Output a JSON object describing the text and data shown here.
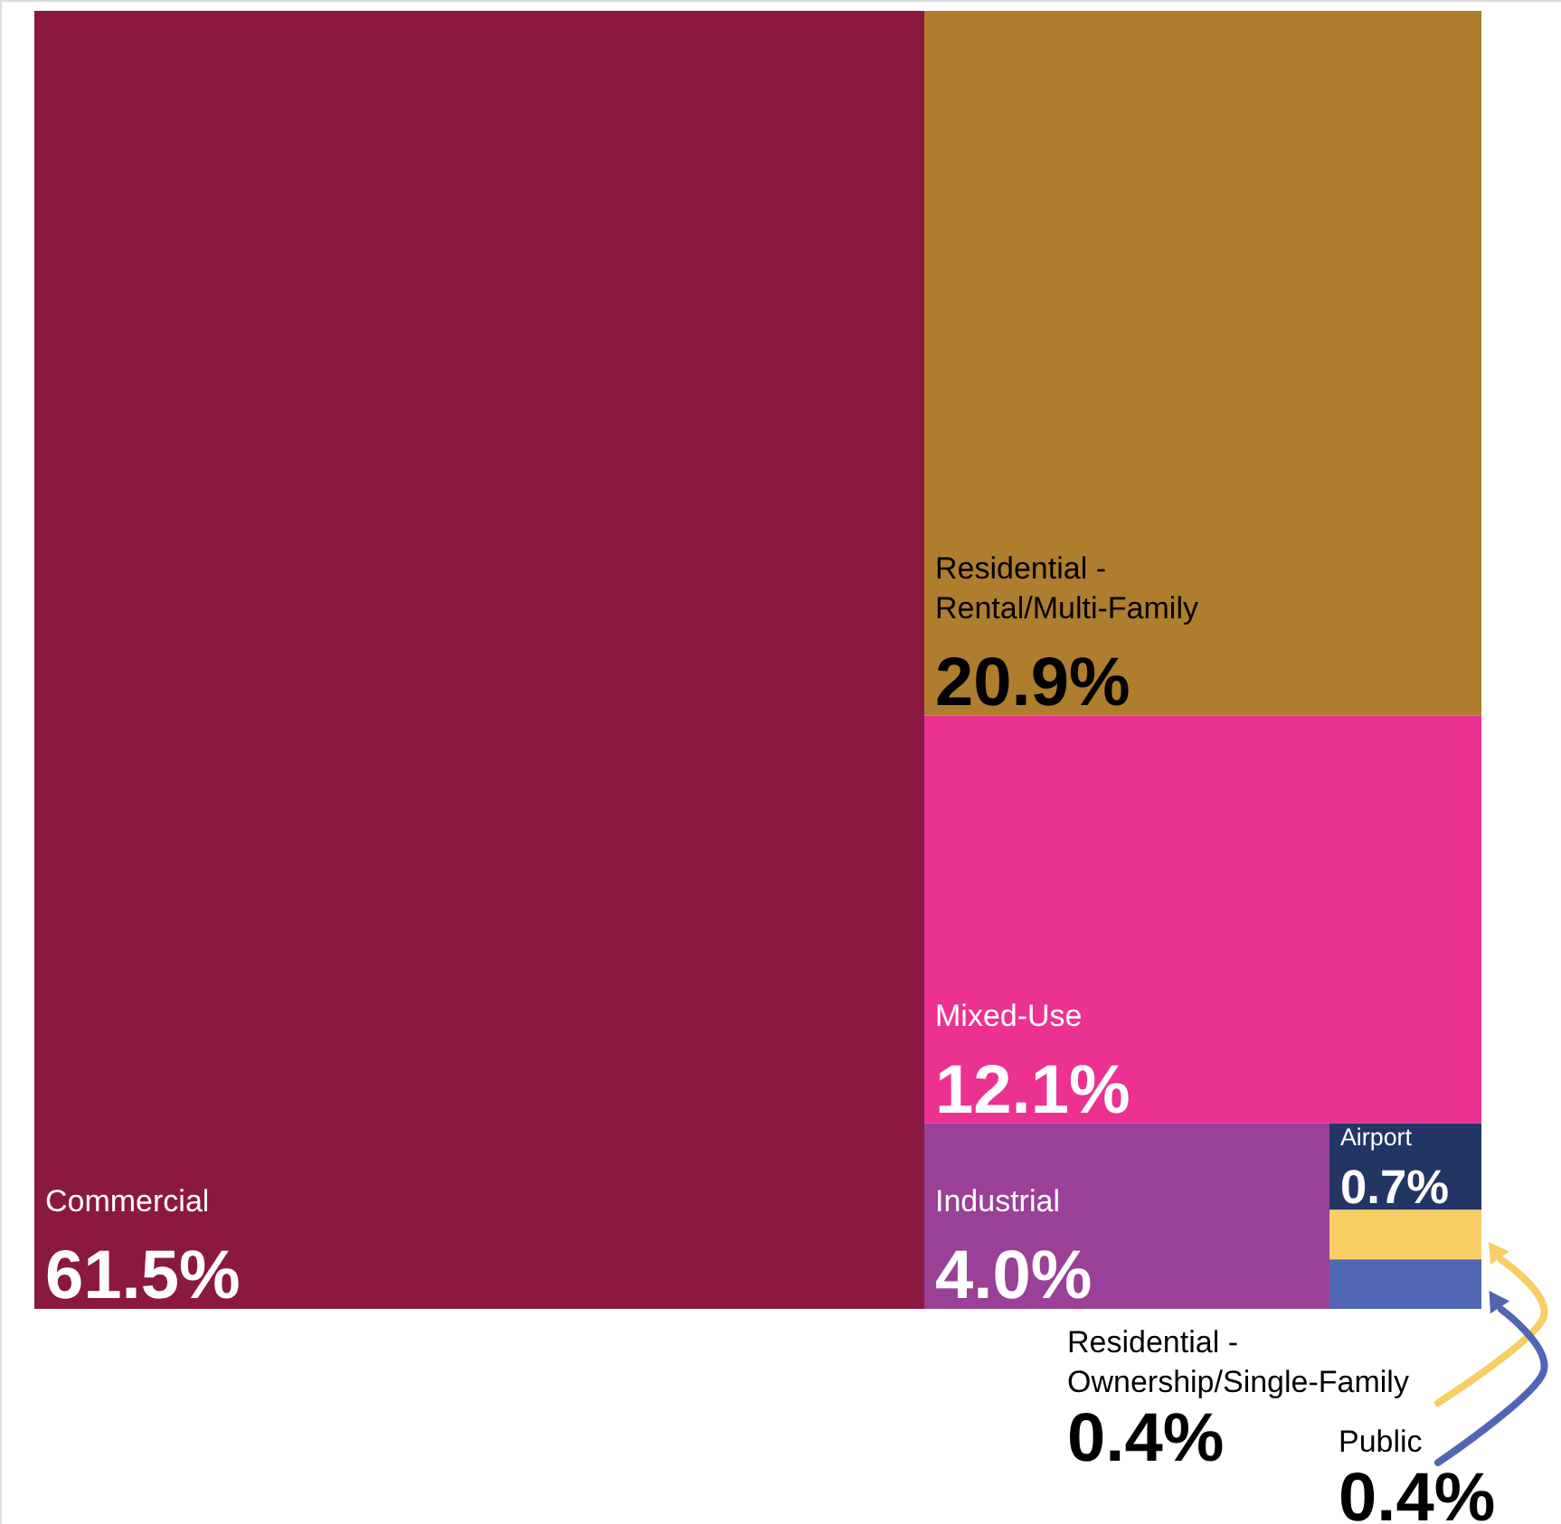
{
  "chart_data": {
    "type": "other",
    "categories": [
      "Commercial",
      "Residential -\nRental/Multi-Family",
      "Mixed-Use",
      "Industrial",
      "Airport",
      "Residential -\nOwnership/Single-Family",
      "Public"
    ],
    "values": [
      61.5,
      20.9,
      12.1,
      4.0,
      0.7,
      0.4,
      0.4
    ],
    "value_labels": [
      "61.5%",
      "20.9%",
      "12.1%",
      "4.0%",
      "0.7%",
      "0.4%",
      "0.4%"
    ],
    "colors": [
      "#8b1841",
      "#ae7d2e",
      "#ec3290",
      "#9a4096",
      "#223564",
      "#f8ce65",
      "#5066b3"
    ]
  }
}
